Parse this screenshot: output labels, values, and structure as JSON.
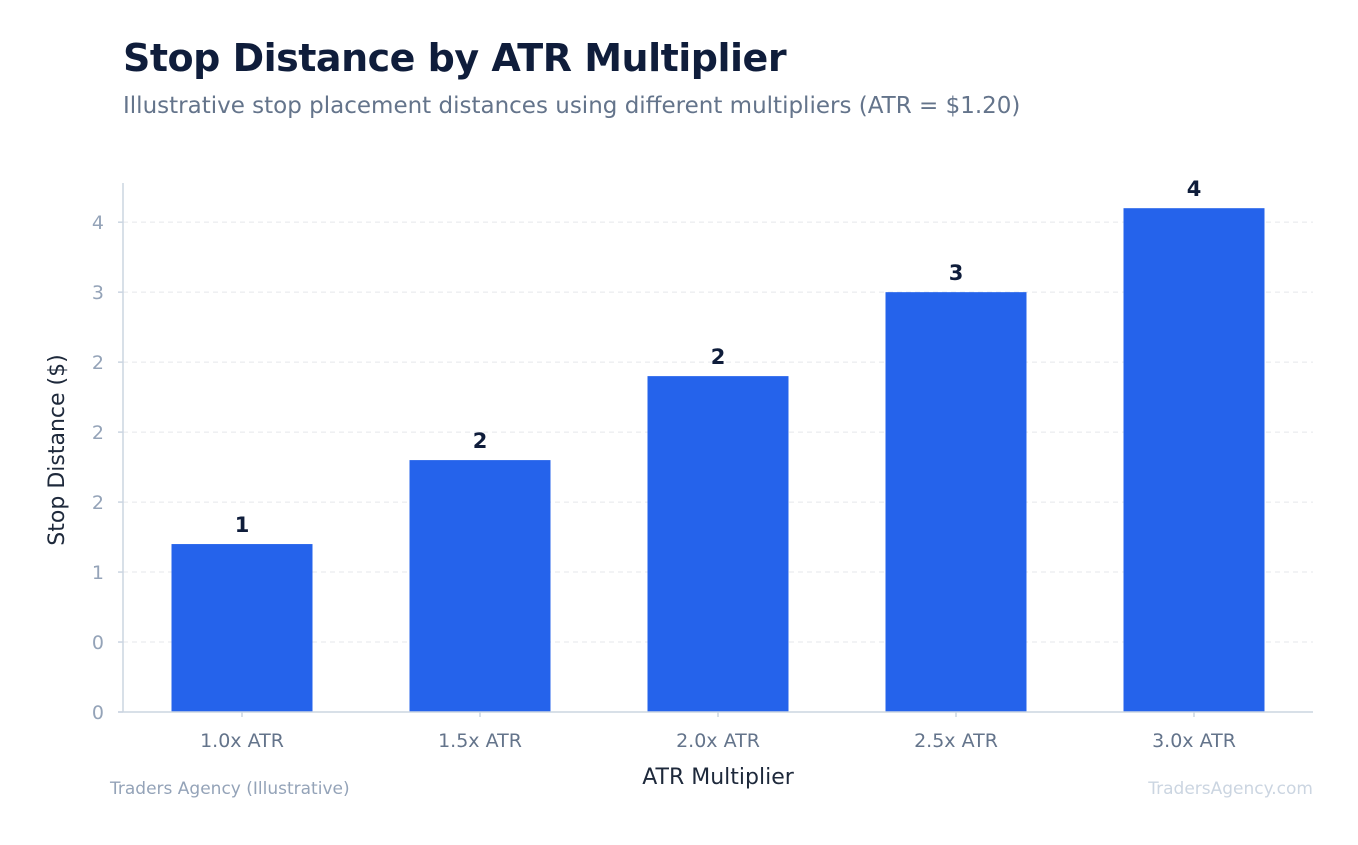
{
  "chart_data": {
    "type": "bar",
    "title": "Stop Distance by ATR Multiplier",
    "subtitle": "Illustrative stop placement distances using different multipliers (ATR = $1.20)",
    "categories": [
      "1.0x ATR",
      "1.5x ATR",
      "2.0x ATR",
      "2.5x ATR",
      "3.0x ATR"
    ],
    "values": [
      1.2,
      1.8,
      2.4,
      3.0,
      3.6
    ],
    "data_labels": [
      "1",
      "2",
      "2",
      "3",
      "4"
    ],
    "xlabel": "ATR Multiplier",
    "ylabel": "Stop Distance ($)",
    "ylim": [
      0,
      3.78
    ],
    "yticks": [
      0,
      0.5,
      1,
      1.5,
      2,
      2.5,
      3,
      3.5
    ],
    "ytick_labels": [
      "0",
      "0",
      "1",
      "2",
      "2",
      "2",
      "3",
      "4"
    ],
    "grid": true,
    "bar_color": "#2563eb"
  },
  "footer": {
    "source": "Traders Agency (Illustrative)",
    "watermark": "TradersAgency.com"
  }
}
